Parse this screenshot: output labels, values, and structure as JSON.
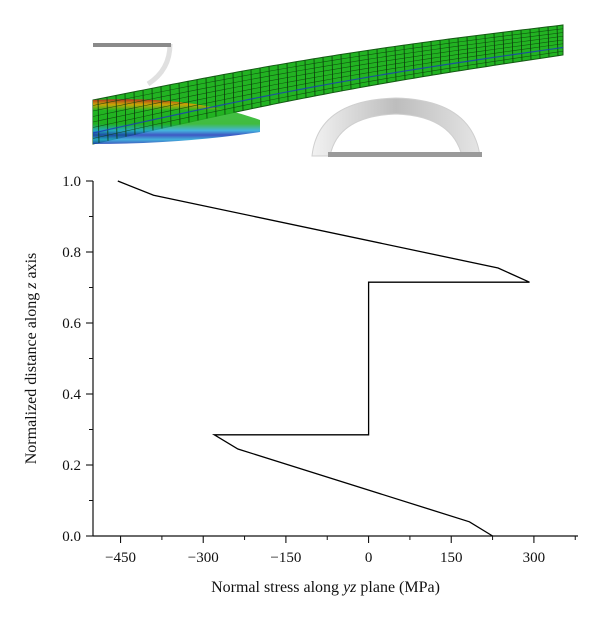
{
  "chart_data": {
    "type": "line",
    "title": "",
    "xlabel_parts": [
      {
        "text": "Normal stress along ",
        "italic": false
      },
      {
        "text": "yz",
        "italic": true
      },
      {
        "text": " plane (MPa)",
        "italic": false
      }
    ],
    "ylabel_parts": [
      {
        "text": "Normalized distance along ",
        "italic": false
      },
      {
        "text": "z",
        "italic": true
      },
      {
        "text": " axis",
        "italic": false
      }
    ],
    "xlim": [
      -500,
      380
    ],
    "ylim": [
      0,
      1.0
    ],
    "x_ticks": [
      -450,
      -300,
      -150,
      0,
      150,
      300
    ],
    "x_tick_labels": [
      "−450",
      "−300",
      "−150",
      "0",
      "150",
      "300"
    ],
    "y_ticks": [
      0.0,
      0.2,
      0.4,
      0.6,
      0.8,
      1.0
    ],
    "y_tick_labels": [
      "0.0",
      "0.2",
      "0.4",
      "0.6",
      "0.8",
      "1.0"
    ],
    "grid": false,
    "legend": "none",
    "series": [
      {
        "color": "#000000",
        "points": [
          {
            "x": -455,
            "y": 1.0
          },
          {
            "x": -390,
            "y": 0.96
          },
          {
            "x": 235,
            "y": 0.755
          },
          {
            "x": 292,
            "y": 0.715
          },
          {
            "x": 0,
            "y": 0.715
          },
          {
            "x": 0,
            "y": 0.285
          },
          {
            "x": -280,
            "y": 0.285
          },
          {
            "x": -237,
            "y": 0.245
          },
          {
            "x": 183,
            "y": 0.04
          },
          {
            "x": 225,
            "y": 0.0
          }
        ]
      }
    ]
  },
  "inset": {
    "description_icon": "deformed-beam-stress-contour-image",
    "beam_colors": [
      "#1fb81f",
      "#d21e1e",
      "#f0b400",
      "#20a8e0",
      "#1e3fbf"
    ],
    "support_color": "#d6d6d6"
  }
}
